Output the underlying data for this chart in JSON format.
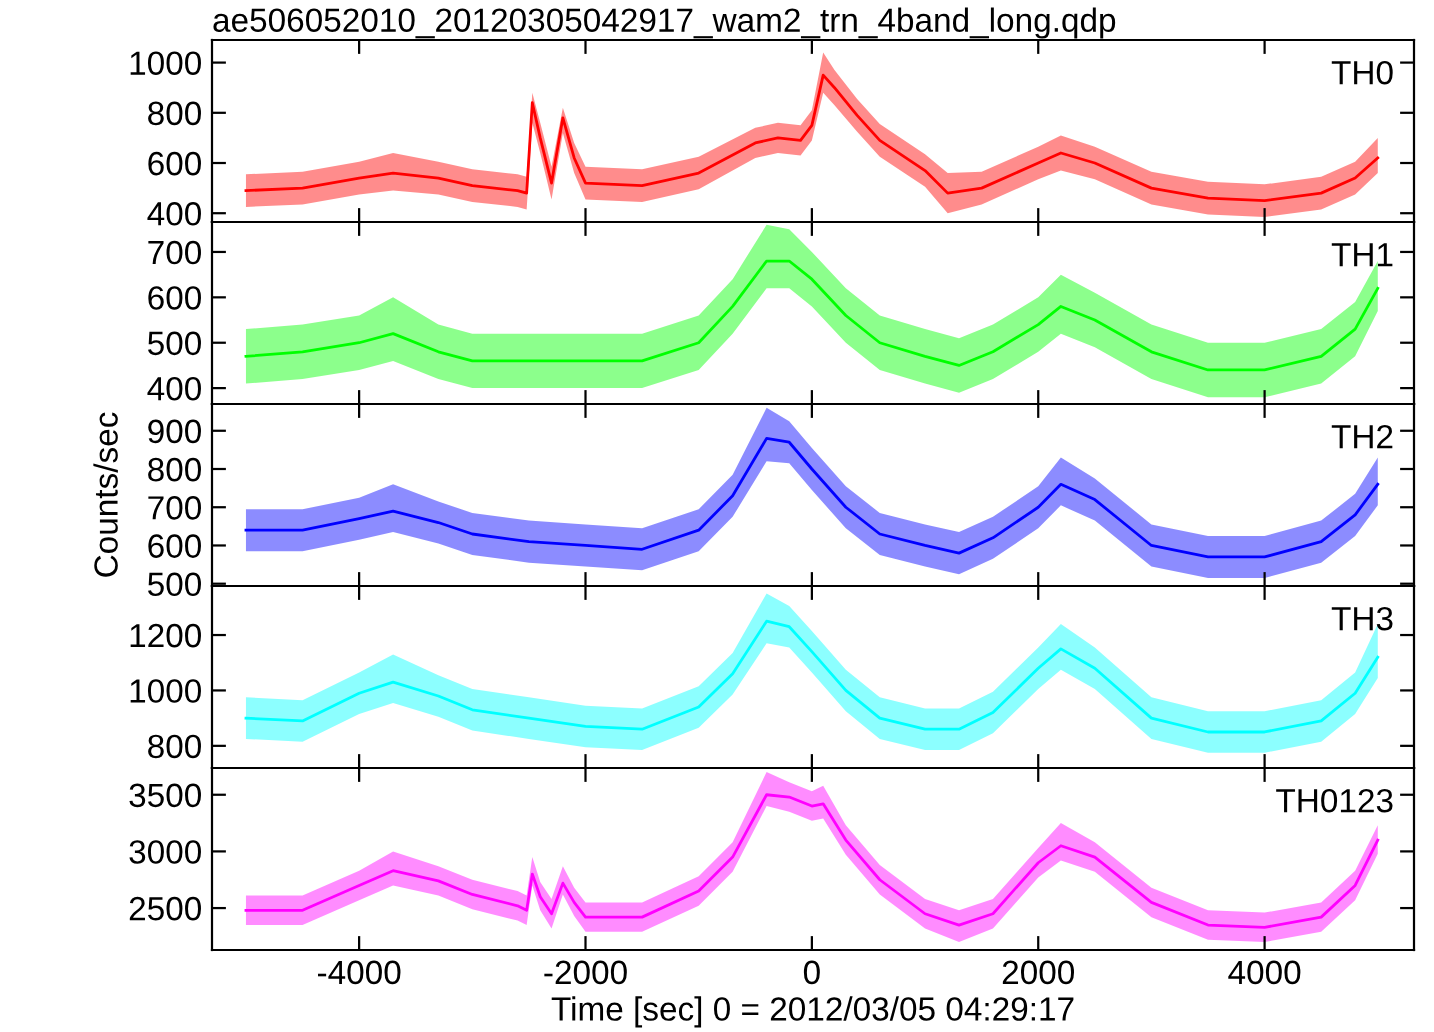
{
  "chart_data": [
    {
      "type": "line",
      "title": "ae506052010_20120305042917_wam2_trn_4band_long.qdp",
      "legend": "top right",
      "tick_labels": "y",
      "xlim": [
        -5300,
        5320
      ],
      "xticks": [
        -4000,
        -2000,
        0,
        2000,
        4000
      ],
      "ylim": [
        365,
        1090
      ],
      "yticks": [
        400,
        600,
        800,
        1000
      ],
      "x": [
        -5000,
        -4500,
        -4000,
        -3700,
        -3300,
        -3000,
        -2600,
        -2520,
        -2470,
        -2400,
        -2300,
        -2200,
        -2100,
        -2000,
        -1500,
        -1000,
        -500,
        -300,
        -100,
        0,
        100,
        200,
        400,
        600,
        1000,
        1200,
        1500,
        2000,
        2200,
        2500,
        3000,
        3500,
        4000,
        4500,
        4800,
        5000
      ],
      "series": [
        {
          "name": "TH0",
          "color": "#ff0000",
          "values": [
            490,
            500,
            540,
            560,
            540,
            510,
            490,
            480,
            840,
            700,
            520,
            780,
            620,
            520,
            510,
            560,
            680,
            700,
            690,
            750,
            950,
            900,
            790,
            690,
            570,
            480,
            500,
            600,
            640,
            600,
            500,
            460,
            450,
            480,
            540,
            620
          ],
          "lower": [
            425,
            435,
            475,
            490,
            475,
            445,
            425,
            415,
            760,
            640,
            455,
            720,
            560,
            455,
            445,
            495,
            620,
            640,
            630,
            690,
            880,
            830,
            725,
            625,
            505,
            400,
            435,
            535,
            570,
            535,
            435,
            395,
            385,
            415,
            475,
            560
          ],
          "upper": [
            555,
            565,
            605,
            640,
            605,
            575,
            555,
            545,
            880,
            760,
            585,
            820,
            680,
            585,
            575,
            625,
            740,
            760,
            750,
            810,
            1040,
            970,
            855,
            755,
            635,
            560,
            565,
            665,
            710,
            665,
            565,
            525,
            515,
            545,
            605,
            700
          ]
        }
      ]
    },
    {
      "type": "line",
      "legend": "top right",
      "tick_labels": "y",
      "xlim": [
        -5300,
        5320
      ],
      "xticks": [
        -4000,
        -2000,
        0,
        2000,
        4000
      ],
      "ylim": [
        365,
        766
      ],
      "yticks": [
        400,
        500,
        600,
        700
      ],
      "x": [
        -5000,
        -4500,
        -4000,
        -3700,
        -3300,
        -3000,
        -2500,
        -2000,
        -1500,
        -1000,
        -700,
        -400,
        -200,
        0,
        300,
        600,
        1000,
        1300,
        1600,
        2000,
        2200,
        2500,
        3000,
        3500,
        4000,
        4500,
        4800,
        5000
      ],
      "series": [
        {
          "name": "TH1",
          "color": "#00ff00",
          "values": [
            470,
            480,
            500,
            520,
            480,
            460,
            460,
            460,
            460,
            500,
            580,
            680,
            680,
            640,
            560,
            500,
            470,
            450,
            480,
            540,
            580,
            550,
            480,
            440,
            440,
            470,
            530,
            620
          ],
          "lower": [
            410,
            420,
            440,
            460,
            420,
            400,
            400,
            400,
            400,
            440,
            520,
            620,
            620,
            580,
            500,
            440,
            410,
            390,
            420,
            480,
            520,
            490,
            420,
            380,
            380,
            410,
            470,
            570
          ],
          "upper": [
            530,
            540,
            560,
            600,
            540,
            520,
            520,
            520,
            520,
            560,
            640,
            760,
            750,
            700,
            620,
            560,
            530,
            510,
            540,
            600,
            650,
            610,
            540,
            500,
            500,
            530,
            590,
            680
          ]
        }
      ]
    },
    {
      "type": "line",
      "legend": "top right",
      "tick_labels": "y",
      "ylabel": "Counts/sec",
      "xlim": [
        -5300,
        5320
      ],
      "xticks": [
        -4000,
        -2000,
        0,
        2000,
        4000
      ],
      "ylim": [
        494,
        970
      ],
      "yticks": [
        500,
        600,
        700,
        800,
        900
      ],
      "x": [
        -5000,
        -4500,
        -4000,
        -3700,
        -3300,
        -3000,
        -2500,
        -2000,
        -1500,
        -1000,
        -700,
        -400,
        -200,
        0,
        300,
        600,
        1000,
        1300,
        1600,
        2000,
        2200,
        2500,
        3000,
        3500,
        4000,
        4500,
        4800,
        5000
      ],
      "series": [
        {
          "name": "TH2",
          "color": "#0000ff",
          "values": [
            640,
            640,
            670,
            690,
            660,
            630,
            610,
            600,
            590,
            640,
            730,
            880,
            870,
            800,
            700,
            630,
            600,
            580,
            620,
            700,
            760,
            720,
            600,
            570,
            570,
            610,
            680,
            760
          ],
          "lower": [
            585,
            585,
            615,
            635,
            605,
            575,
            555,
            545,
            535,
            585,
            675,
            820,
            815,
            745,
            645,
            575,
            545,
            525,
            565,
            645,
            705,
            665,
            545,
            515,
            515,
            555,
            625,
            705
          ],
          "upper": [
            695,
            695,
            725,
            760,
            715,
            685,
            665,
            655,
            645,
            695,
            785,
            960,
            925,
            855,
            755,
            685,
            655,
            635,
            675,
            755,
            830,
            775,
            655,
            625,
            625,
            665,
            735,
            830
          ]
        }
      ]
    },
    {
      "type": "line",
      "legend": "top right",
      "tick_labels": "y",
      "xlim": [
        -5300,
        5320
      ],
      "xticks": [
        -4000,
        -2000,
        0,
        2000,
        4000
      ],
      "ylim": [
        720,
        1377
      ],
      "yticks": [
        800,
        1000,
        1200
      ],
      "x": [
        -5000,
        -4500,
        -4000,
        -3700,
        -3300,
        -3000,
        -2500,
        -2000,
        -1500,
        -1000,
        -700,
        -400,
        -200,
        0,
        300,
        600,
        1000,
        1300,
        1600,
        2000,
        2200,
        2500,
        3000,
        3500,
        4000,
        4500,
        4800,
        5000
      ],
      "series": [
        {
          "name": "TH3",
          "color": "#00ffff",
          "values": [
            900,
            890,
            990,
            1030,
            980,
            930,
            900,
            870,
            860,
            940,
            1060,
            1250,
            1230,
            1140,
            1000,
            900,
            860,
            860,
            920,
            1080,
            1150,
            1080,
            900,
            850,
            850,
            890,
            990,
            1120
          ],
          "lower": [
            825,
            815,
            915,
            955,
            905,
            855,
            825,
            795,
            785,
            865,
            985,
            1170,
            1155,
            1065,
            925,
            825,
            785,
            785,
            845,
            1005,
            1075,
            1005,
            825,
            775,
            775,
            815,
            915,
            1045
          ],
          "upper": [
            975,
            965,
            1065,
            1130,
            1055,
            1005,
            975,
            945,
            935,
            1015,
            1135,
            1350,
            1305,
            1215,
            1075,
            975,
            935,
            935,
            995,
            1155,
            1240,
            1155,
            975,
            925,
            925,
            965,
            1065,
            1240
          ]
        }
      ]
    },
    {
      "type": "line",
      "legend": "top right",
      "xlabel": "Time [sec] 0 = 2012/03/05 04:29:17",
      "xlim": [
        -5300,
        5320
      ],
      "xticks": [
        -4000,
        -2000,
        0,
        2000,
        4000
      ],
      "ylim": [
        2130,
        3736
      ],
      "yticks": [
        2500,
        3000,
        3500
      ],
      "x": [
        -5000,
        -4500,
        -4000,
        -3700,
        -3300,
        -3000,
        -2600,
        -2520,
        -2470,
        -2400,
        -2300,
        -2200,
        -2100,
        -2000,
        -1500,
        -1000,
        -700,
        -400,
        -200,
        0,
        100,
        300,
        600,
        1000,
        1300,
        1600,
        2000,
        2200,
        2500,
        3000,
        3500,
        4000,
        4500,
        4800,
        5000
      ],
      "series": [
        {
          "name": "TH0123",
          "color": "#ff00ff",
          "values": [
            2480,
            2480,
            2700,
            2830,
            2740,
            2620,
            2520,
            2480,
            2800,
            2600,
            2450,
            2720,
            2550,
            2420,
            2420,
            2650,
            2950,
            3500,
            3480,
            3400,
            3420,
            3100,
            2750,
            2450,
            2350,
            2450,
            2900,
            3050,
            2950,
            2550,
            2350,
            2330,
            2420,
            2700,
            3100
          ],
          "lower": [
            2350,
            2350,
            2570,
            2700,
            2610,
            2490,
            2390,
            2350,
            2700,
            2480,
            2320,
            2620,
            2430,
            2290,
            2290,
            2520,
            2820,
            3400,
            3350,
            3270,
            3290,
            2970,
            2620,
            2320,
            2200,
            2320,
            2770,
            2920,
            2820,
            2420,
            2220,
            2200,
            2290,
            2570,
            2980
          ],
          "upper": [
            2610,
            2610,
            2830,
            3000,
            2870,
            2750,
            2650,
            2610,
            2950,
            2730,
            2580,
            2870,
            2680,
            2550,
            2550,
            2780,
            3080,
            3700,
            3610,
            3530,
            3580,
            3230,
            2880,
            2580,
            2480,
            2580,
            3030,
            3250,
            3080,
            2680,
            2480,
            2460,
            2550,
            2830,
            3230
          ]
        }
      ]
    }
  ]
}
